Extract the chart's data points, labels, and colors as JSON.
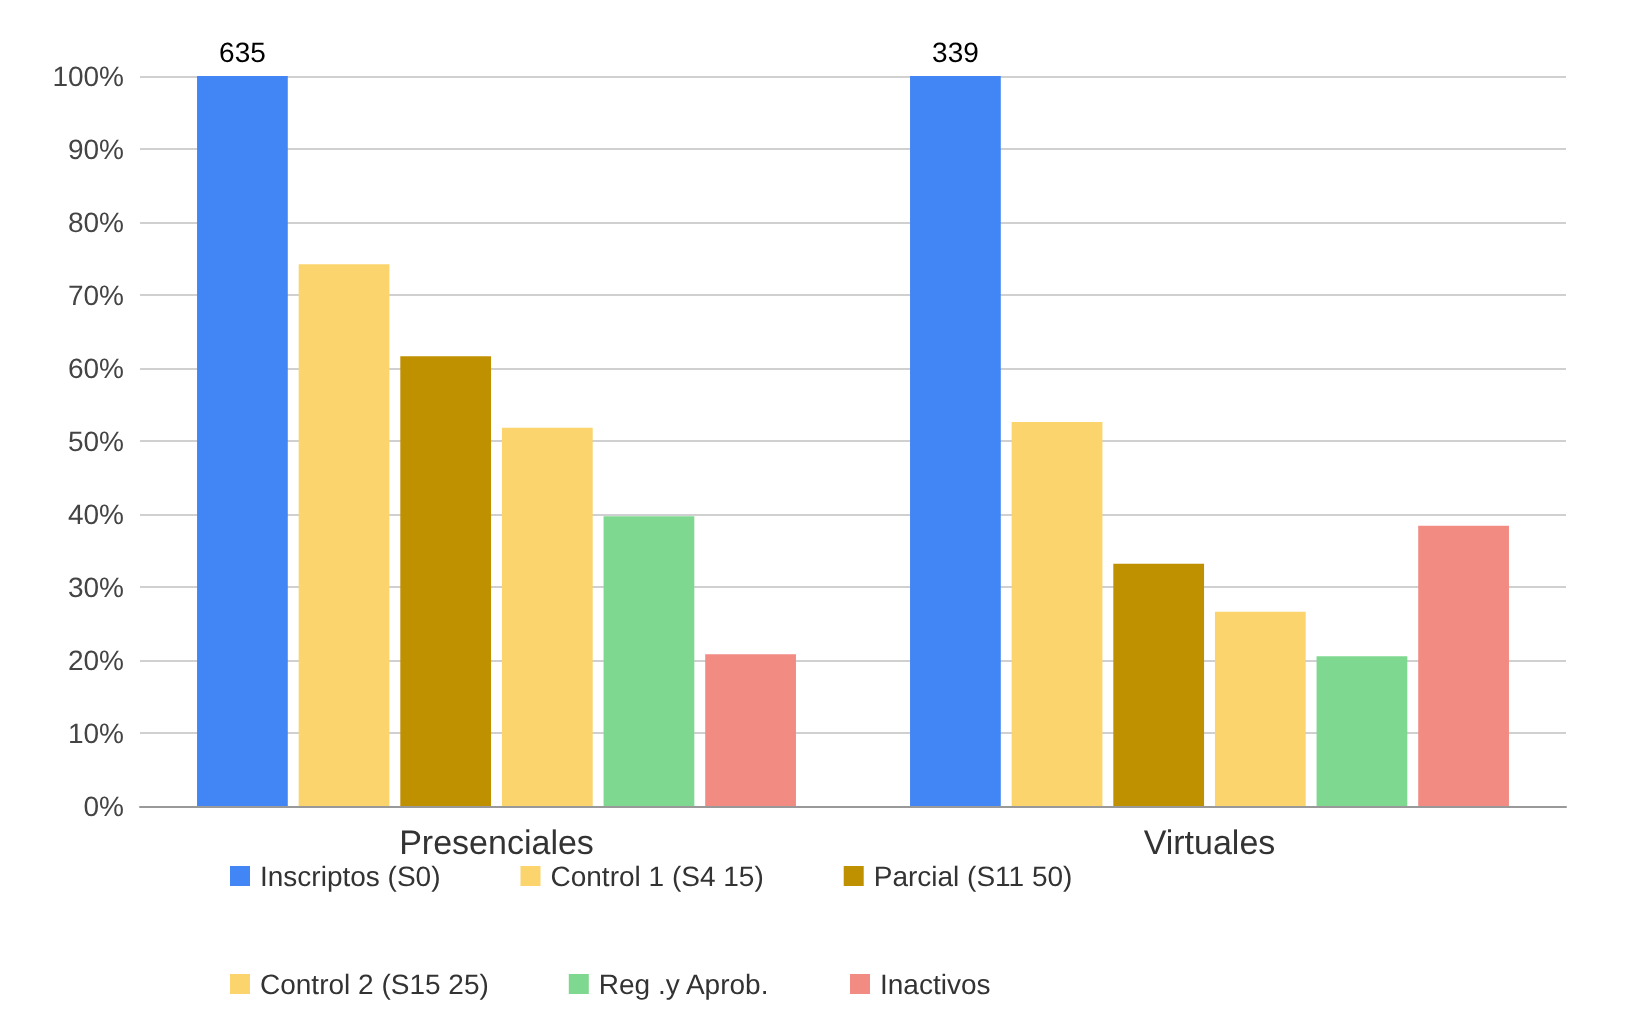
{
  "chart_data": {
    "type": "bar",
    "categories": [
      "Presenciales",
      "Virtuales"
    ],
    "series": [
      {
        "name": "Inscriptos (S0)",
        "color": "#4285f4",
        "values": [
          100,
          100
        ]
      },
      {
        "name": "Control 1 (S4 15)",
        "color": "#fbd46d",
        "values": [
          74.2,
          52.6
        ]
      },
      {
        "name": "Parcial (S11 50)",
        "color": "#bf9000",
        "values": [
          61.6,
          33.2
        ]
      },
      {
        "name": "Control 2 (S15 25)",
        "color": "#fbd46d",
        "values": [
          51.8,
          26.6
        ]
      },
      {
        "name": "Reg .y Aprob.",
        "color": "#7fd88f",
        "values": [
          39.7,
          20.5
        ]
      },
      {
        "name": "Inactivos",
        "color": "#f28b82",
        "values": [
          20.8,
          38.4
        ]
      }
    ],
    "ylim": [
      0,
      100
    ],
    "yticks": [
      {
        "value": 0,
        "label": "0%"
      },
      {
        "value": 10,
        "label": "10%"
      },
      {
        "value": 20,
        "label": "20%"
      },
      {
        "value": 30,
        "label": "30%"
      },
      {
        "value": 40,
        "label": "40%"
      },
      {
        "value": 50,
        "label": "50%"
      },
      {
        "value": 60,
        "label": "60%"
      },
      {
        "value": 70,
        "label": "70%"
      },
      {
        "value": 80,
        "label": "80%"
      },
      {
        "value": 90,
        "label": "90%"
      },
      {
        "value": 100,
        "label": "100%"
      }
    ],
    "annotations": [
      "635",
      "339"
    ],
    "grid": "y",
    "legend": "bottom"
  }
}
